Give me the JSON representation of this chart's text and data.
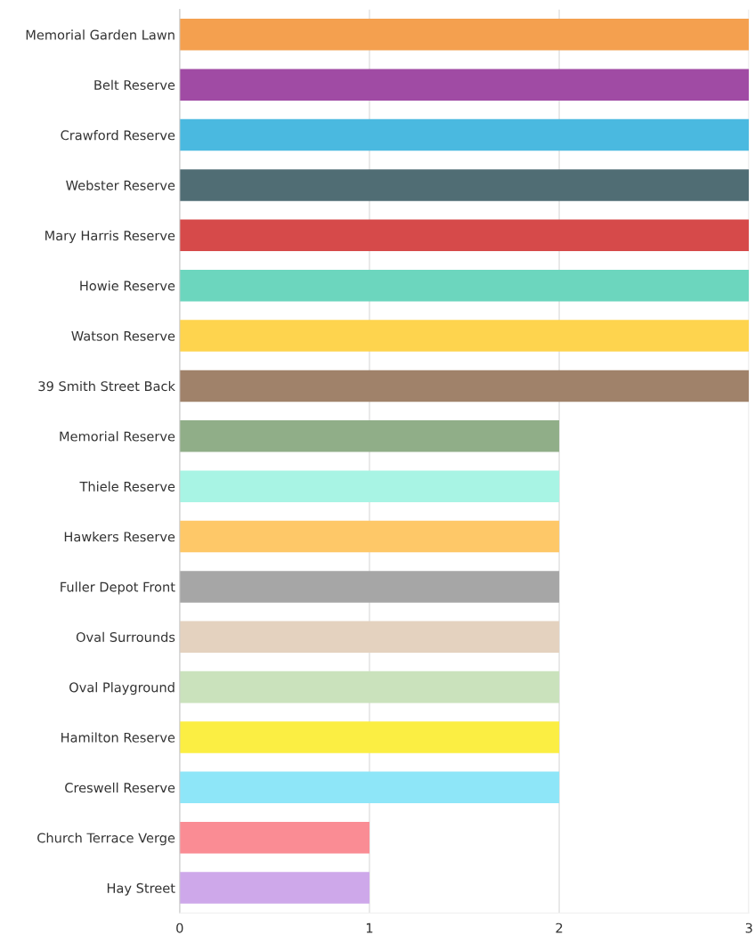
{
  "chart_data": {
    "type": "bar",
    "orientation": "horizontal",
    "categories": [
      "Memorial Garden Lawn",
      "Belt Reserve",
      "Crawford Reserve",
      "Webster Reserve",
      "Mary Harris Reserve",
      "Howie Reserve",
      "Watson Reserve",
      "39 Smith Street Back",
      "Memorial Reserve",
      "Thiele Reserve",
      "Hawkers Reserve",
      "Fuller Depot Front",
      "Oval Surrounds",
      "Oval Playground",
      "Hamilton Reserve",
      "Creswell Reserve",
      "Church Terrace Verge",
      "Hay Street"
    ],
    "values": [
      3,
      3,
      3,
      3,
      3,
      3,
      3,
      3,
      2,
      2,
      2,
      2,
      2,
      2,
      2,
      2,
      1,
      1
    ],
    "colors": [
      "#f4a04f",
      "#a04ba4",
      "#4ab9e0",
      "#506d74",
      "#d64a4a",
      "#6cd6be",
      "#fed44e",
      "#a0826a",
      "#90ae88",
      "#a8f4e4",
      "#fec868",
      "#a6a6a6",
      "#e4d2bf",
      "#cae2bc",
      "#fbee43",
      "#8ee6f8",
      "#fa8c94",
      "#cea8ea"
    ],
    "xlim": [
      0,
      3
    ],
    "xticks": [
      0,
      1,
      2,
      3
    ],
    "grid": "x"
  }
}
